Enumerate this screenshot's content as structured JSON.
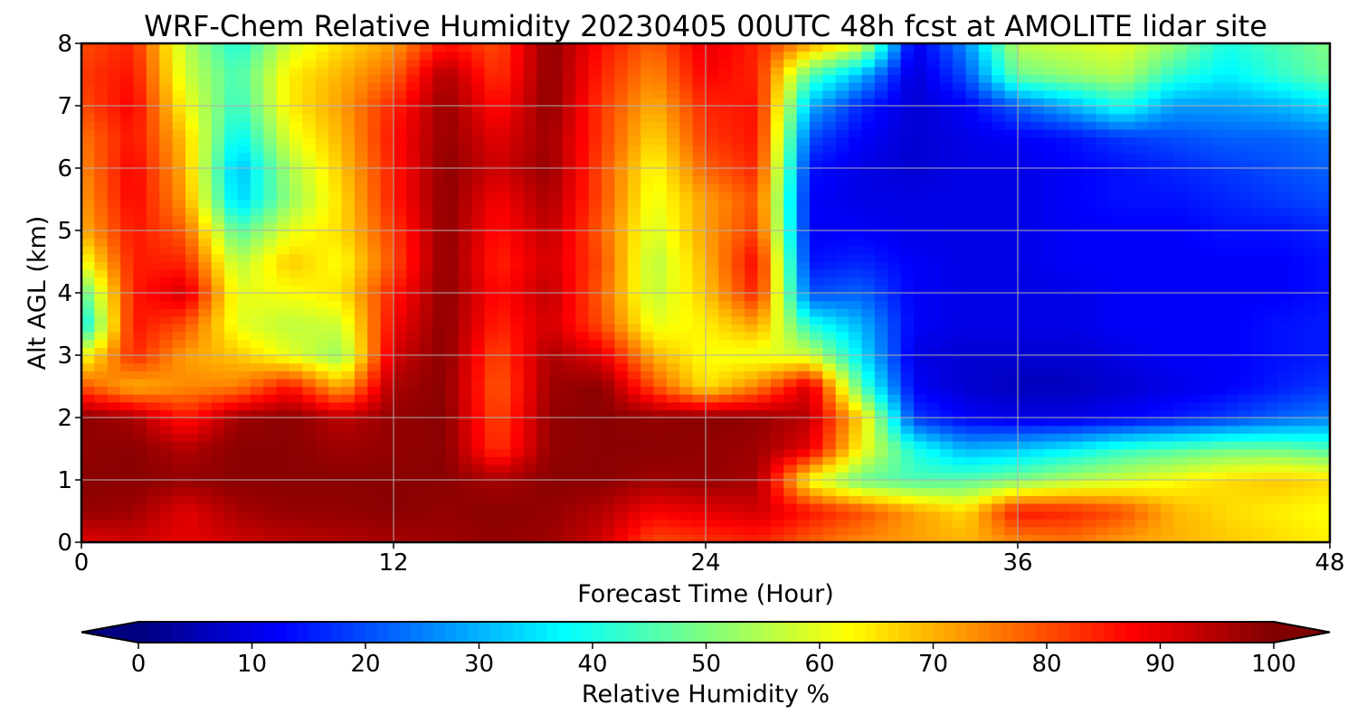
{
  "chart_data": {
    "type": "heatmap",
    "title": "WRF-Chem Relative Humidity 20230405 00UTC 48h fcst at AMOLITE lidar site",
    "xlabel": "Forecast Time (Hour)",
    "ylabel": "Alt AGL (km)",
    "xlim": [
      0,
      48
    ],
    "ylim": [
      0,
      8
    ],
    "x_ticks": [
      0,
      12,
      24,
      36,
      48
    ],
    "y_ticks": [
      0,
      1,
      2,
      3,
      4,
      5,
      6,
      7,
      8
    ],
    "grid": true,
    "x": [
      0,
      2,
      4,
      6,
      8,
      10,
      12,
      14,
      16,
      18,
      20,
      22,
      24,
      26,
      28,
      30,
      32,
      34,
      36,
      38,
      40,
      42,
      44,
      46,
      48
    ],
    "y": [
      0,
      0.5,
      1,
      1.5,
      2,
      2.5,
      3,
      3.5,
      4,
      4.5,
      5,
      5.5,
      6,
      6.5,
      7,
      7.5,
      8
    ],
    "values": [
      [
        90,
        92,
        90,
        92,
        94,
        95,
        96,
        97,
        98,
        97,
        92,
        80,
        82,
        84,
        78,
        74,
        72,
        70,
        74,
        76,
        72,
        70,
        68,
        66,
        64
      ],
      [
        98,
        97,
        90,
        96,
        98,
        98,
        99,
        98,
        99,
        98,
        95,
        88,
        90,
        92,
        86,
        80,
        72,
        66,
        86,
        84,
        80,
        70,
        66,
        64,
        62
      ],
      [
        99,
        99,
        98,
        99,
        99,
        99,
        99,
        99,
        96,
        99,
        99,
        97,
        98,
        96,
        62,
        48,
        45,
        46,
        50,
        55,
        58,
        62,
        66,
        68,
        66
      ],
      [
        98,
        99,
        95,
        99,
        99,
        97,
        98,
        99,
        82,
        98,
        99,
        99,
        98,
        97,
        90,
        62,
        40,
        30,
        32,
        36,
        42,
        45,
        48,
        48,
        45
      ],
      [
        99,
        96,
        85,
        97,
        99,
        94,
        98,
        99,
        80,
        98,
        99,
        98,
        99,
        98,
        94,
        66,
        18,
        12,
        10,
        10,
        12,
        15,
        18,
        22,
        25
      ],
      [
        80,
        70,
        74,
        75,
        86,
        70,
        96,
        99,
        78,
        97,
        99,
        80,
        65,
        75,
        92,
        45,
        12,
        8,
        6,
        6,
        8,
        10,
        12,
        15,
        18
      ],
      [
        60,
        84,
        72,
        68,
        60,
        52,
        92,
        99,
        80,
        96,
        90,
        70,
        62,
        60,
        58,
        35,
        10,
        8,
        8,
        8,
        10,
        12,
        12,
        14,
        15
      ],
      [
        35,
        86,
        80,
        60,
        56,
        58,
        88,
        99,
        84,
        92,
        80,
        60,
        64,
        72,
        40,
        30,
        12,
        10,
        10,
        10,
        12,
        12,
        12,
        14,
        15
      ],
      [
        45,
        85,
        92,
        60,
        62,
        65,
        85,
        99,
        86,
        94,
        78,
        56,
        68,
        85,
        20,
        22,
        12,
        10,
        10,
        10,
        12,
        12,
        12,
        12,
        14
      ],
      [
        60,
        85,
        84,
        55,
        68,
        62,
        80,
        99,
        84,
        92,
        80,
        55,
        70,
        88,
        14,
        16,
        12,
        10,
        10,
        12,
        12,
        12,
        12,
        12,
        14
      ],
      [
        70,
        86,
        78,
        45,
        60,
        66,
        82,
        99,
        86,
        94,
        78,
        58,
        72,
        82,
        12,
        12,
        10,
        10,
        10,
        12,
        12,
        12,
        14,
        14,
        16
      ],
      [
        72,
        88,
        72,
        32,
        52,
        66,
        85,
        99,
        88,
        96,
        80,
        60,
        72,
        80,
        12,
        10,
        10,
        10,
        10,
        12,
        14,
        14,
        16,
        18,
        20
      ],
      [
        74,
        88,
        70,
        30,
        54,
        68,
        85,
        99,
        92,
        98,
        80,
        62,
        78,
        84,
        14,
        10,
        8,
        10,
        10,
        12,
        14,
        16,
        18,
        20,
        22
      ],
      [
        76,
        86,
        68,
        36,
        60,
        70,
        86,
        98,
        90,
        97,
        82,
        66,
        82,
        86,
        20,
        12,
        8,
        10,
        12,
        14,
        18,
        20,
        22,
        22,
        24
      ],
      [
        80,
        88,
        62,
        42,
        64,
        72,
        84,
        98,
        86,
        99,
        82,
        70,
        84,
        86,
        30,
        16,
        8,
        12,
        22,
        30,
        40,
        28,
        28,
        30,
        35
      ],
      [
        82,
        86,
        58,
        44,
        64,
        70,
        78,
        96,
        82,
        99,
        84,
        74,
        88,
        84,
        46,
        30,
        8,
        20,
        48,
        52,
        55,
        42,
        36,
        42,
        48
      ],
      [
        80,
        84,
        56,
        40,
        58,
        66,
        72,
        86,
        80,
        99,
        86,
        78,
        90,
        84,
        72,
        60,
        10,
        26,
        56,
        58,
        60,
        52,
        40,
        45,
        50
      ]
    ]
  },
  "colorbar": {
    "label": "Relative Humidity %",
    "min": 0,
    "max": 100,
    "ticks": [
      "0",
      "10",
      "20",
      "30",
      "40",
      "50",
      "60",
      "70",
      "80",
      "90",
      "100"
    ],
    "extend": "both",
    "colormap": "jet"
  }
}
